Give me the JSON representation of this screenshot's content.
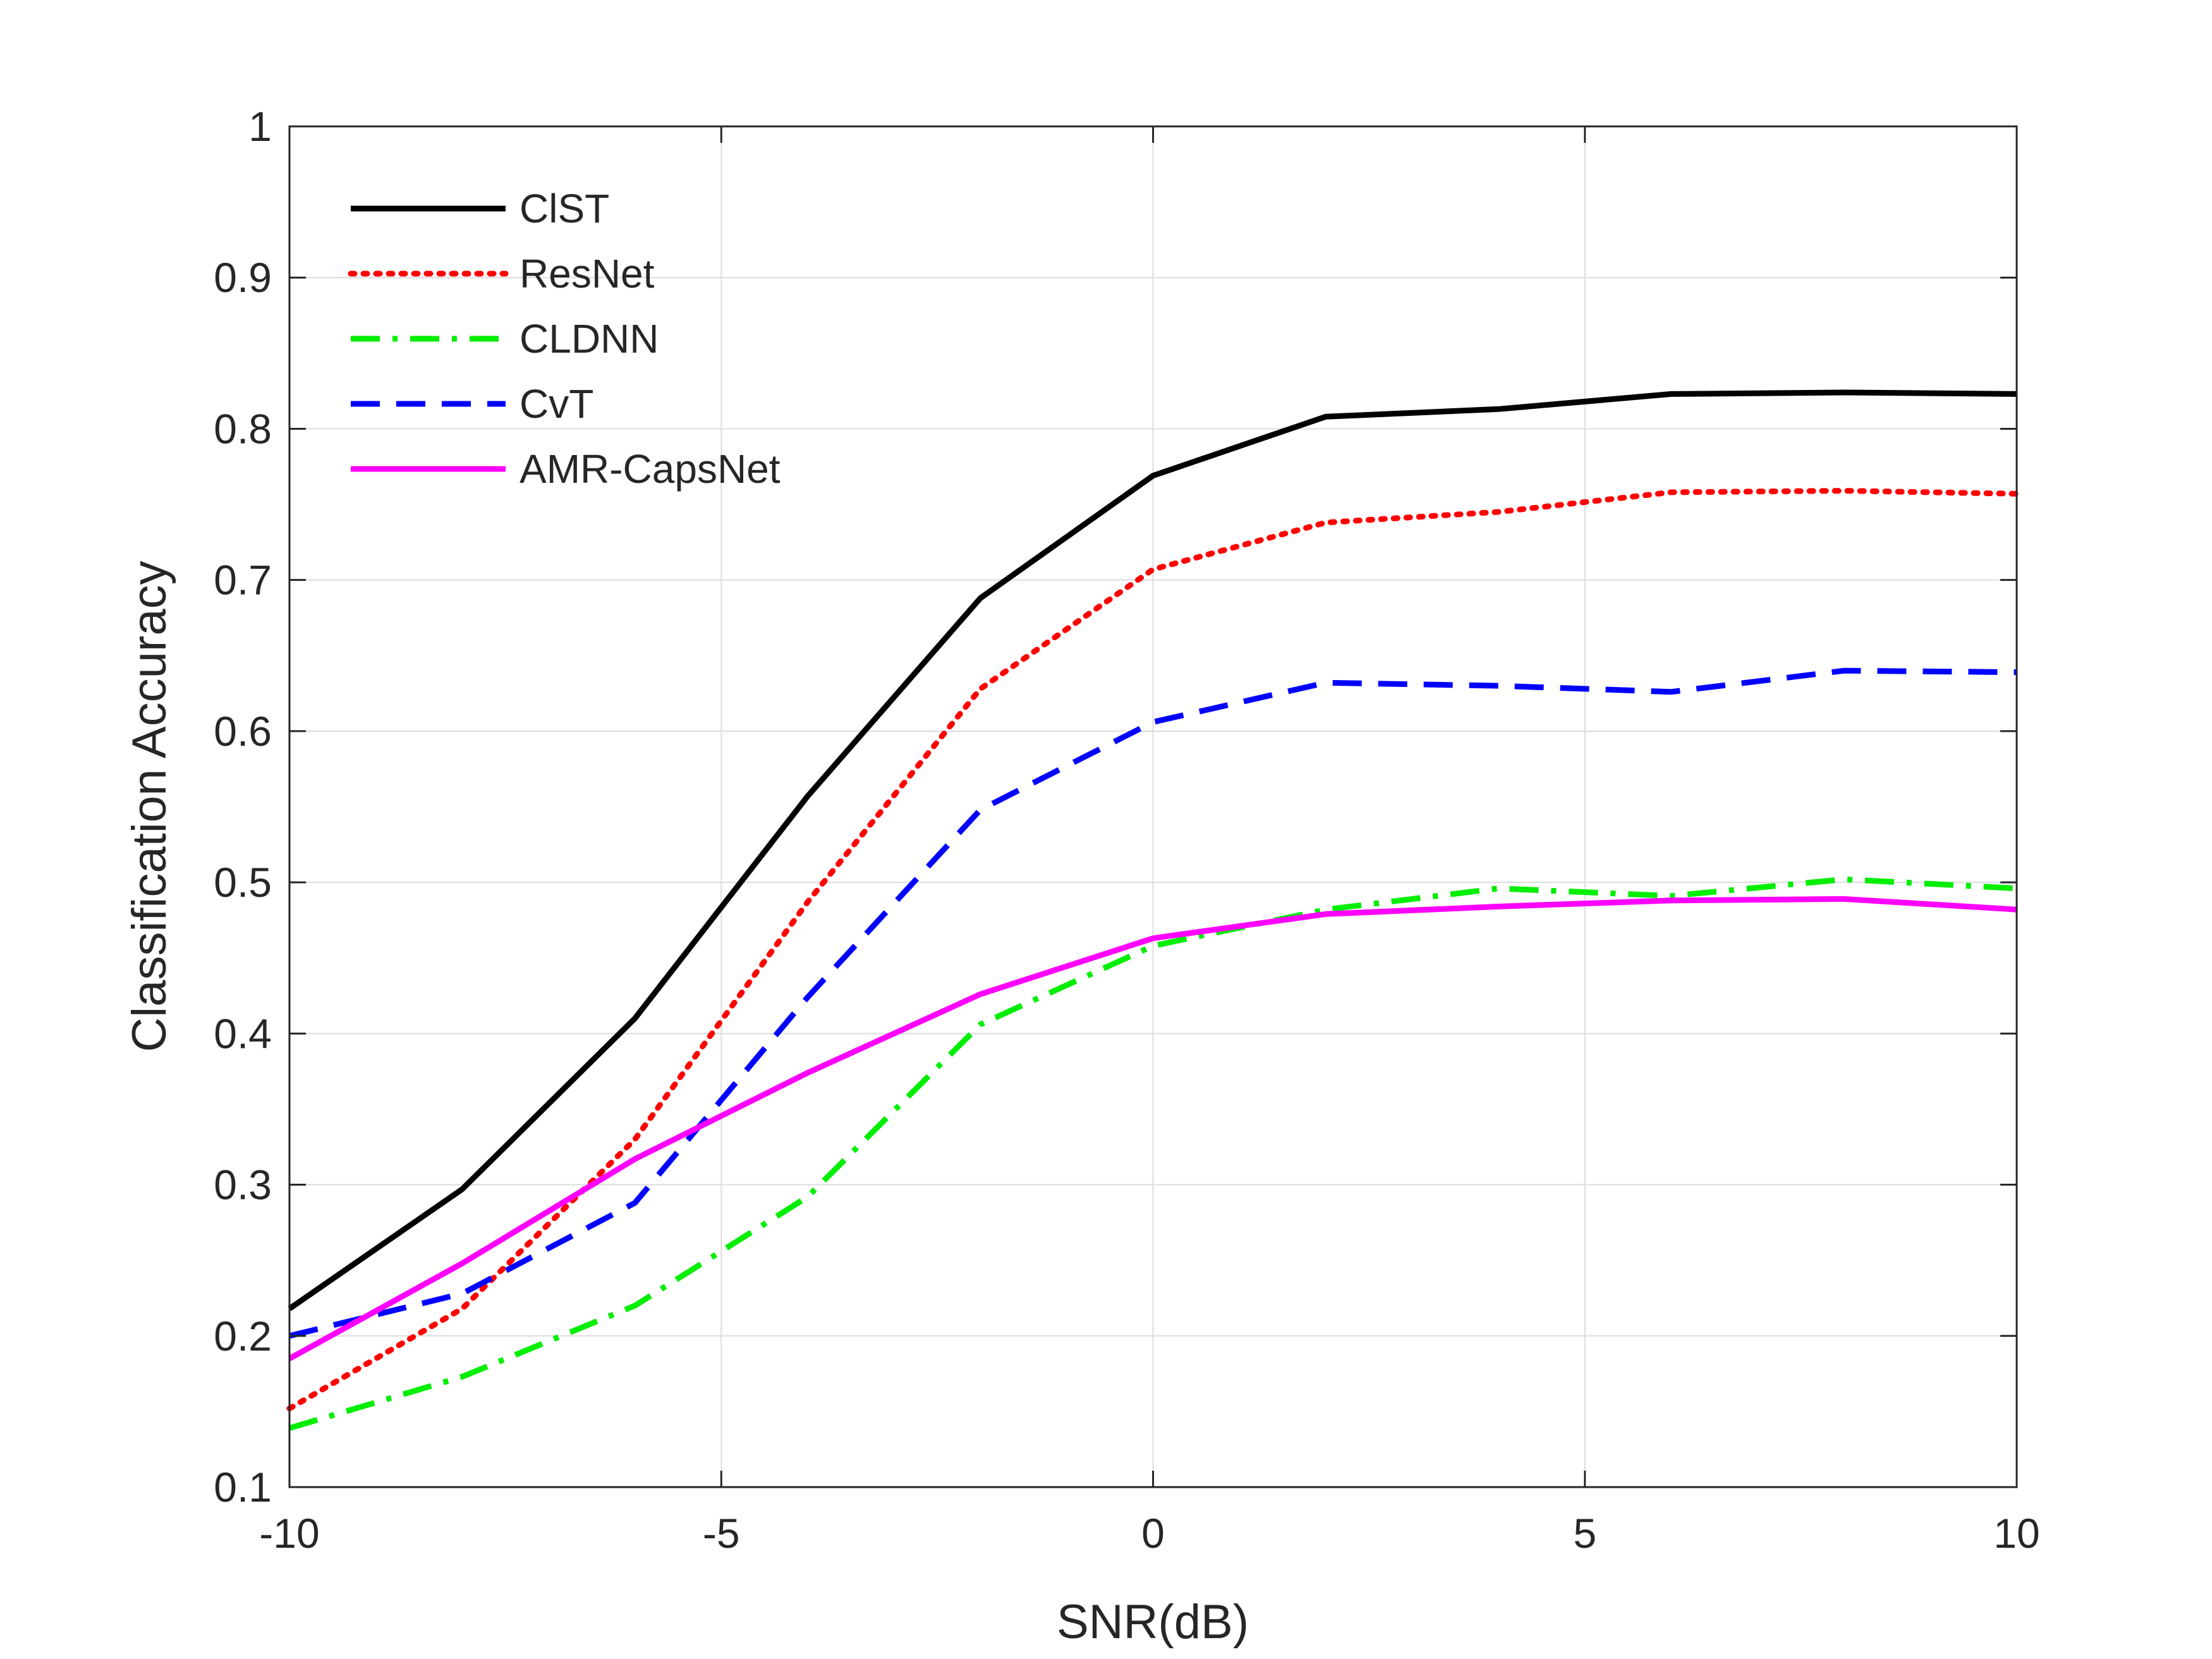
{
  "chart_data": {
    "type": "line",
    "title": "",
    "xlabel": "SNR(dB)",
    "ylabel": "Classification Accuracy",
    "xlim": [
      -10,
      10
    ],
    "ylim": [
      0.1,
      1
    ],
    "xticks": [
      -10,
      -5,
      0,
      5,
      10
    ],
    "yticks": [
      0.1,
      0.2,
      0.3,
      0.4,
      0.5,
      0.6,
      0.7,
      0.8,
      0.9,
      1
    ],
    "grid": true,
    "legend_position": "top-left",
    "x": [
      -10,
      -8,
      -6,
      -4,
      -2,
      0,
      2,
      4,
      6,
      8,
      10
    ],
    "series": [
      {
        "name": "ClST",
        "color": "#000000",
        "dash": "solid",
        "values": [
          0.218,
          0.297,
          0.41,
          0.557,
          0.688,
          0.769,
          0.808,
          0.813,
          0.823,
          0.824,
          0.823
        ]
      },
      {
        "name": "ResNet",
        "color": "#ff0000",
        "dash": "dotted",
        "values": [
          0.152,
          0.218,
          0.33,
          0.487,
          0.628,
          0.707,
          0.738,
          0.745,
          0.758,
          0.759,
          0.757
        ]
      },
      {
        "name": "CLDNN",
        "color": "#00ee00",
        "dash": "dashdot",
        "values": [
          0.139,
          0.173,
          0.22,
          0.292,
          0.406,
          0.458,
          0.482,
          0.496,
          0.491,
          0.502,
          0.496
        ]
      },
      {
        "name": "CvT",
        "color": "#0000ff",
        "dash": "dashed",
        "values": [
          0.2,
          0.228,
          0.288,
          0.424,
          0.548,
          0.606,
          0.632,
          0.63,
          0.626,
          0.64,
          0.639
        ]
      },
      {
        "name": "AMR-CapsNet",
        "color": "#ff00ff",
        "dash": "solid",
        "values": [
          0.185,
          0.248,
          0.317,
          0.374,
          0.426,
          0.463,
          0.479,
          0.484,
          0.488,
          0.489,
          0.482
        ]
      }
    ]
  }
}
